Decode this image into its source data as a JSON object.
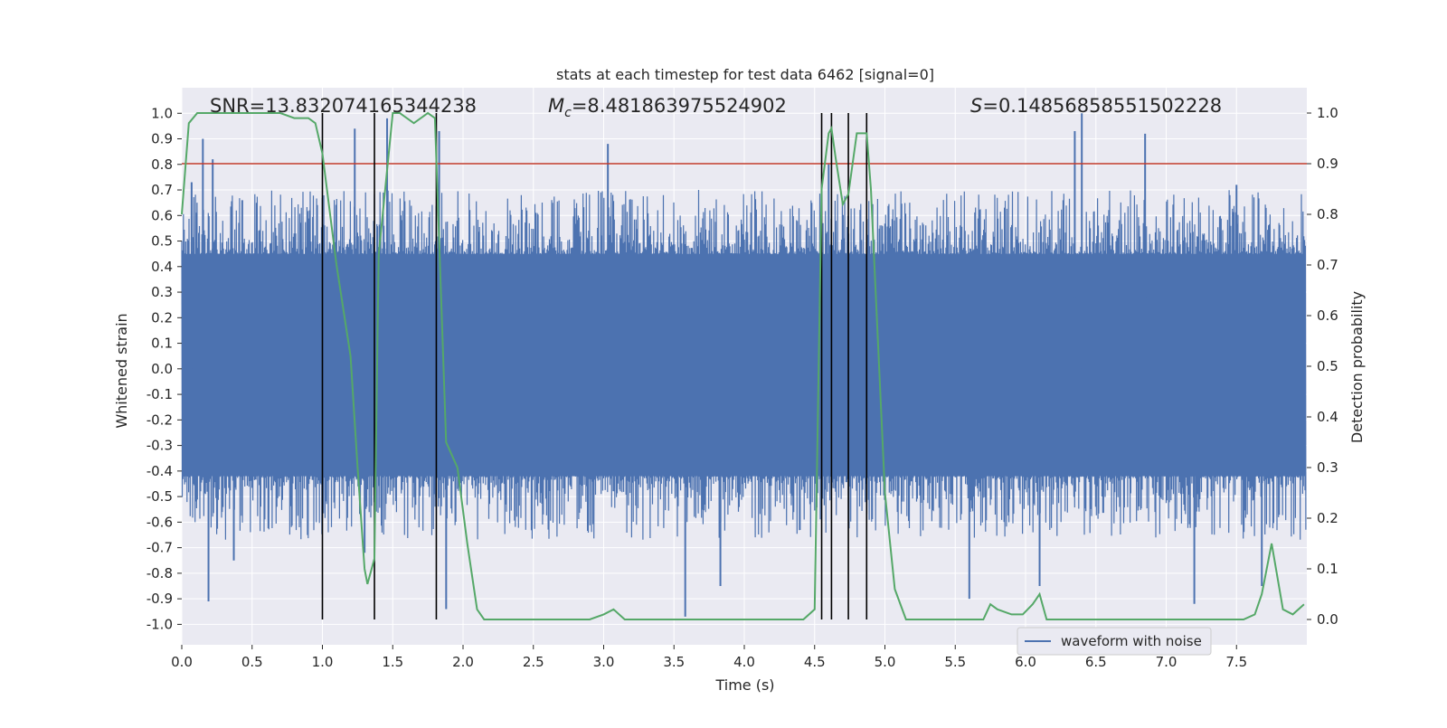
{
  "chart_data": {
    "type": "line",
    "title": "stats at each timestep for test data 6462 [signal=0]",
    "xlabel": "Time (s)",
    "ylabel_left": "Whitened strain",
    "ylabel_right": "Detection probability",
    "xlim": [
      0.0,
      8.0
    ],
    "ylim_left": [
      -1.08,
      1.1
    ],
    "ylim_right": [
      -0.05,
      1.05
    ],
    "xticks": [
      "0.0",
      "0.5",
      "1.0",
      "1.5",
      "2.0",
      "2.5",
      "3.0",
      "3.5",
      "4.0",
      "4.5",
      "5.0",
      "5.5",
      "6.0",
      "6.5",
      "7.0",
      "7.5"
    ],
    "yticks_left": [
      "1.0",
      "0.9",
      "0.8",
      "0.7",
      "0.6",
      "0.5",
      "0.4",
      "0.3",
      "0.2",
      "0.1",
      "0.0",
      "-0.1",
      "-0.2",
      "-0.3",
      "-0.4",
      "-0.5",
      "-0.6",
      "-0.7",
      "-0.8",
      "-0.9",
      "-1.0"
    ],
    "yticks_right": [
      "1.0",
      "0.9",
      "0.8",
      "0.7",
      "0.6",
      "0.5",
      "0.4",
      "0.3",
      "0.2",
      "0.1",
      "0.0"
    ],
    "annotations": {
      "snr": "SNR=13.832074165344238",
      "mc_symbol": "M",
      "mc_sub": "c",
      "mc_value": "=8.481863975524902",
      "s_symbol": "S",
      "s_value": "=0.14856858551502228"
    },
    "legend": {
      "label": "waveform with noise",
      "position": "lower-right"
    },
    "threshold": {
      "value": 0.9,
      "color": "#c0392b"
    },
    "detection_times": [
      1.0,
      1.37,
      1.81,
      4.55,
      4.62,
      4.74,
      4.87
    ],
    "waveform": {
      "name": "waveform with noise",
      "color": "#4c72b0",
      "envelope_peak_min": 0.45,
      "envelope_trough_min": -0.42,
      "peaks": [
        {
          "x": 0.07,
          "y": 0.73
        },
        {
          "x": 0.15,
          "y": 0.9
        },
        {
          "x": 0.22,
          "y": 0.82
        },
        {
          "x": 0.19,
          "y": -0.91
        },
        {
          "x": 0.37,
          "y": -0.75
        },
        {
          "x": 0.43,
          "y": 0.66
        },
        {
          "x": 1.23,
          "y": 0.94
        },
        {
          "x": 1.3,
          "y": -0.72
        },
        {
          "x": 1.46,
          "y": 0.98
        },
        {
          "x": 1.83,
          "y": 0.93
        },
        {
          "x": 1.88,
          "y": -0.94
        },
        {
          "x": 3.03,
          "y": 0.88
        },
        {
          "x": 3.58,
          "y": -0.97
        },
        {
          "x": 3.83,
          "y": -0.85
        },
        {
          "x": 4.6,
          "y": 0.8
        },
        {
          "x": 5.6,
          "y": -0.9
        },
        {
          "x": 6.1,
          "y": -0.85
        },
        {
          "x": 6.4,
          "y": 1.0
        },
        {
          "x": 6.35,
          "y": 0.93
        },
        {
          "x": 6.85,
          "y": 0.92
        },
        {
          "x": 7.2,
          "y": -0.92
        },
        {
          "x": 7.5,
          "y": 0.72
        },
        {
          "x": 7.68,
          "y": -0.85
        }
      ]
    },
    "detection_probability": {
      "name": "detection probability",
      "color": "#55a868",
      "x": [
        0.0,
        0.05,
        0.11,
        0.3,
        0.5,
        0.7,
        0.8,
        0.9,
        0.95,
        1.0,
        1.1,
        1.2,
        1.25,
        1.3,
        1.32,
        1.37,
        1.4,
        1.5,
        1.55,
        1.65,
        1.75,
        1.8,
        1.88,
        1.96,
        2.03,
        2.1,
        2.15,
        2.3,
        2.5,
        2.7,
        2.9,
        3.0,
        3.07,
        3.15,
        3.25,
        3.4,
        3.5,
        3.7,
        3.9,
        4.0,
        4.1,
        4.2,
        4.3,
        4.42,
        4.5,
        4.55,
        4.6,
        4.62,
        4.65,
        4.7,
        4.74,
        4.8,
        4.87,
        4.9,
        5.0,
        5.07,
        5.15,
        5.25,
        5.4,
        5.5,
        5.6,
        5.7,
        5.75,
        5.8,
        5.9,
        5.98,
        6.05,
        6.1,
        6.15,
        6.25,
        6.4,
        6.6,
        6.8,
        7.0,
        7.2,
        7.4,
        7.55,
        7.63,
        7.68,
        7.75,
        7.83,
        7.9,
        7.98
      ],
      "y": [
        0.8,
        0.98,
        1.0,
        1.0,
        1.0,
        1.0,
        0.99,
        0.99,
        0.98,
        0.92,
        0.7,
        0.52,
        0.3,
        0.1,
        0.07,
        0.12,
        0.72,
        1.0,
        1.0,
        0.98,
        1.0,
        0.99,
        0.35,
        0.3,
        0.15,
        0.02,
        0.0,
        0.0,
        0.0,
        0.0,
        0.0,
        0.01,
        0.02,
        0.0,
        0.0,
        0.0,
        0.0,
        0.0,
        0.0,
        0.0,
        0.0,
        0.0,
        0.0,
        0.0,
        0.02,
        0.85,
        0.96,
        0.97,
        0.91,
        0.82,
        0.84,
        0.96,
        0.96,
        0.85,
        0.25,
        0.06,
        0.0,
        0.0,
        0.0,
        0.0,
        0.0,
        0.0,
        0.03,
        0.02,
        0.01,
        0.01,
        0.03,
        0.05,
        0.0,
        0.0,
        0.0,
        0.0,
        0.0,
        0.0,
        0.0,
        0.0,
        0.0,
        0.01,
        0.05,
        0.15,
        0.02,
        0.01,
        0.03
      ]
    }
  }
}
